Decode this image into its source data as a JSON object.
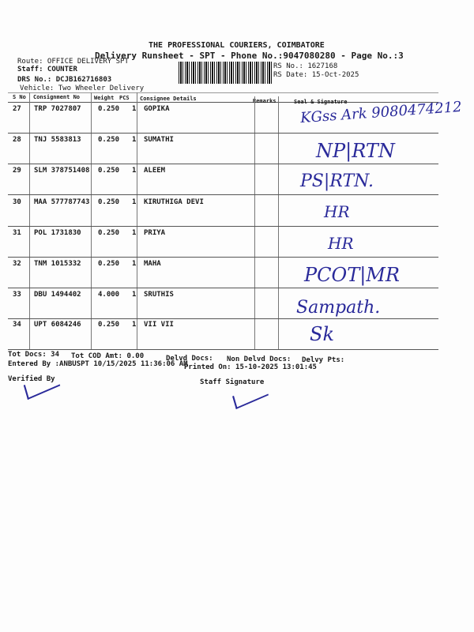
{
  "header": {
    "company": "THE PROFESSIONAL COURIERS, COIMBATORE",
    "title": "Delivery Runsheet - SPT - Phone No.:9047080280 - Page No.:3",
    "route": "Route: OFFICE DELIVERY SPT",
    "staff": "Staff: COUNTER",
    "drs": "DRS No.: DCJB162716803",
    "vehicle": "Vehicle: Two Wheeler Delivery",
    "rs_no": "RS No.: 1627168",
    "rs_date": "RS Date: 15-Oct-2025"
  },
  "columns": [
    "S No",
    "Consignment No",
    "Weight",
    "PCS",
    "Consignee Details",
    "Remarks",
    "Seal & Signature"
  ],
  "rows": [
    {
      "sno": "27",
      "cn": "TRP 7027807",
      "weight": "0.250",
      "pcs": "1",
      "consignee": "GOPIKA",
      "signature": "KGss Ark 9080474212"
    },
    {
      "sno": "28",
      "cn": "TNJ 5583813",
      "weight": "0.250",
      "pcs": "1",
      "consignee": "SUMATHI",
      "signature": "NP|RTN"
    },
    {
      "sno": "29",
      "cn": "SLM 378751408",
      "weight": "0.250",
      "pcs": "1",
      "consignee": "ALEEM",
      "signature": "PS|RTN."
    },
    {
      "sno": "30",
      "cn": "MAA 577787743",
      "weight": "0.250",
      "pcs": "1",
      "consignee": "KIRUTHIGA DEVI",
      "signature": "HR"
    },
    {
      "sno": "31",
      "cn": "POL 1731830",
      "weight": "0.250",
      "pcs": "1",
      "consignee": "PRIYA",
      "signature": "HR"
    },
    {
      "sno": "32",
      "cn": "TNM 1015332",
      "weight": "0.250",
      "pcs": "1",
      "consignee": "MAHA",
      "signature": "PCOT|MR"
    },
    {
      "sno": "33",
      "cn": "DBU 1494402",
      "weight": "4.000",
      "pcs": "1",
      "consignee": "SRUTHIS",
      "signature": "Sampath."
    },
    {
      "sno": "34",
      "cn": "UPT 6084246",
      "weight": "0.250",
      "pcs": "1",
      "consignee": "VII VII",
      "signature": "Sk"
    }
  ],
  "footer": {
    "tot_docs": "Tot Docs:  34",
    "tot_cod": "Tot COD Amt:    0.00",
    "delvd": "Delvd Docs:",
    "non_delvd": "Non Delvd Docs:",
    "delvy_pts": "Delvy Pts:",
    "entered": "Entered By :ANBUSPT 10/15/2025 11:36:06 AM",
    "printed": "Printed On: 15-10-2025 13:01:45",
    "verified": "Verified By",
    "staff_sig": "Staff Signature"
  },
  "ink_color": "#2a2a9a"
}
